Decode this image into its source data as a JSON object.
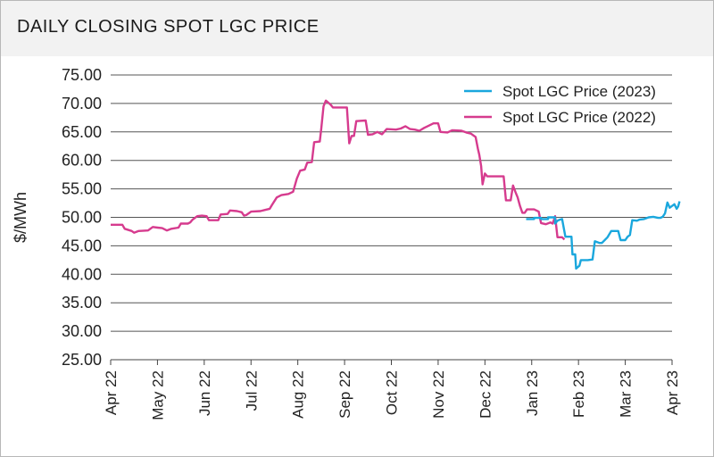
{
  "title": "DAILY CLOSING SPOT LGC PRICE",
  "chart_data": {
    "type": "line",
    "ylabel": "$/MWh",
    "ylim": [
      25,
      75
    ],
    "yticks": [
      "75.00",
      "70.00",
      "65.00",
      "60.00",
      "55.00",
      "50.00",
      "45.00",
      "40.00",
      "35.00",
      "30.00",
      "25.00"
    ],
    "xticks": [
      "Apr 22",
      "May 22",
      "Jun 22",
      "Jul 22",
      "Aug 22",
      "Sep 22",
      "Oct 22",
      "Nov 22",
      "Dec 22",
      "Jan 23",
      "Feb 23",
      "Mar 23",
      "Apr 23"
    ],
    "grid": "horizontal",
    "legend_position": "top-right",
    "series": [
      {
        "name": "Spot LGC Price (2023)",
        "color": "#1aa7dd",
        "points": [
          [
            8.88,
            49.7
          ],
          [
            9.05,
            49.7
          ],
          [
            9.05,
            49.9
          ],
          [
            9.2,
            49.9
          ],
          [
            9.2,
            49.7
          ],
          [
            9.35,
            49.7
          ],
          [
            9.35,
            50.0
          ],
          [
            9.5,
            50.0
          ],
          [
            9.5,
            48.9
          ],
          [
            9.55,
            49.4
          ],
          [
            9.6,
            49.6
          ],
          [
            9.65,
            49.7
          ],
          [
            9.7,
            47.5
          ],
          [
            9.72,
            46.6
          ],
          [
            9.85,
            46.6
          ],
          [
            9.87,
            43.5
          ],
          [
            9.93,
            43.5
          ],
          [
            9.95,
            41.0
          ],
          [
            10.02,
            41.5
          ],
          [
            10.05,
            42.5
          ],
          [
            10.2,
            42.5
          ],
          [
            10.3,
            42.6
          ],
          [
            10.35,
            45.8
          ],
          [
            10.45,
            45.5
          ],
          [
            10.5,
            45.5
          ],
          [
            10.62,
            46.5
          ],
          [
            10.7,
            47.6
          ],
          [
            10.85,
            47.6
          ],
          [
            10.9,
            46.0
          ],
          [
            11.0,
            46.0
          ],
          [
            11.05,
            46.6
          ],
          [
            11.1,
            46.9
          ],
          [
            11.15,
            49.5
          ],
          [
            11.25,
            49.4
          ],
          [
            11.3,
            49.6
          ],
          [
            11.4,
            49.7
          ],
          [
            11.5,
            50.0
          ],
          [
            11.6,
            50.1
          ],
          [
            11.7,
            49.9
          ],
          [
            11.75,
            49.9
          ],
          [
            11.8,
            50.1
          ],
          [
            11.85,
            50.7
          ],
          [
            11.9,
            52.6
          ],
          [
            11.95,
            51.7
          ],
          [
            12.05,
            52.3
          ],
          [
            12.1,
            51.5
          ],
          [
            12.13,
            51.9
          ],
          [
            12.16,
            52.8
          ]
        ]
      },
      {
        "name": "Spot LGC Price (2022)",
        "color": "#d63b8e",
        "points": [
          [
            0.0,
            48.7
          ],
          [
            0.25,
            48.7
          ],
          [
            0.3,
            48.0
          ],
          [
            0.45,
            47.6
          ],
          [
            0.5,
            47.3
          ],
          [
            0.6,
            47.6
          ],
          [
            0.8,
            47.7
          ],
          [
            0.9,
            48.3
          ],
          [
            1.0,
            48.2
          ],
          [
            1.1,
            48.1
          ],
          [
            1.2,
            47.7
          ],
          [
            1.3,
            48.0
          ],
          [
            1.45,
            48.2
          ],
          [
            1.5,
            48.9
          ],
          [
            1.65,
            48.9
          ],
          [
            1.7,
            49.1
          ],
          [
            1.75,
            49.6
          ],
          [
            1.85,
            50.2
          ],
          [
            1.95,
            50.3
          ],
          [
            2.05,
            50.2
          ],
          [
            2.1,
            49.5
          ],
          [
            2.3,
            49.5
          ],
          [
            2.35,
            50.5
          ],
          [
            2.5,
            50.6
          ],
          [
            2.55,
            51.2
          ],
          [
            2.7,
            51.1
          ],
          [
            2.8,
            50.9
          ],
          [
            2.85,
            50.3
          ],
          [
            2.9,
            50.4
          ],
          [
            3.0,
            51.0
          ],
          [
            3.2,
            51.1
          ],
          [
            3.3,
            51.3
          ],
          [
            3.4,
            51.5
          ],
          [
            3.45,
            52.2
          ],
          [
            3.55,
            53.5
          ],
          [
            3.65,
            53.9
          ],
          [
            3.8,
            54.1
          ],
          [
            3.9,
            54.5
          ],
          [
            3.98,
            56.8
          ],
          [
            4.05,
            58.2
          ],
          [
            4.15,
            58.4
          ],
          [
            4.2,
            59.6
          ],
          [
            4.3,
            59.7
          ],
          [
            4.35,
            63.2
          ],
          [
            4.47,
            63.3
          ],
          [
            4.5,
            65.5
          ],
          [
            4.55,
            69.5
          ],
          [
            4.6,
            70.5
          ],
          [
            4.7,
            69.8
          ],
          [
            4.75,
            69.3
          ],
          [
            5.05,
            69.3
          ],
          [
            5.1,
            63.0
          ],
          [
            5.15,
            64.3
          ],
          [
            5.2,
            64.3
          ],
          [
            5.25,
            66.9
          ],
          [
            5.45,
            67.0
          ],
          [
            5.5,
            64.5
          ],
          [
            5.6,
            64.6
          ],
          [
            5.7,
            65.0
          ],
          [
            5.8,
            64.6
          ],
          [
            5.9,
            65.5
          ],
          [
            6.1,
            65.4
          ],
          [
            6.2,
            65.6
          ],
          [
            6.3,
            66.0
          ],
          [
            6.4,
            65.5
          ],
          [
            6.5,
            65.4
          ],
          [
            6.6,
            65.2
          ],
          [
            6.7,
            65.7
          ],
          [
            6.8,
            66.1
          ],
          [
            6.9,
            66.5
          ],
          [
            7.0,
            66.5
          ],
          [
            7.05,
            65.0
          ],
          [
            7.2,
            64.9
          ],
          [
            7.3,
            65.3
          ],
          [
            7.5,
            65.2
          ],
          [
            7.6,
            64.9
          ],
          [
            7.7,
            64.7
          ],
          [
            7.8,
            64.1
          ],
          [
            7.85,
            62.0
          ],
          [
            7.88,
            61.0
          ],
          [
            7.92,
            59.0
          ],
          [
            7.95,
            55.8
          ],
          [
            8.0,
            57.7
          ],
          [
            8.05,
            57.2
          ],
          [
            8.4,
            57.2
          ],
          [
            8.45,
            53.0
          ],
          [
            8.55,
            53.0
          ],
          [
            8.6,
            55.6
          ],
          [
            8.65,
            54.5
          ],
          [
            8.7,
            53.5
          ],
          [
            8.75,
            52.0
          ],
          [
            8.8,
            50.8
          ],
          [
            8.85,
            50.8
          ],
          [
            8.9,
            51.4
          ],
          [
            9.05,
            51.4
          ],
          [
            9.15,
            51.0
          ],
          [
            9.2,
            49.0
          ],
          [
            9.3,
            48.8
          ],
          [
            9.4,
            49.1
          ],
          [
            9.45,
            48.9
          ],
          [
            9.5,
            50.2
          ],
          [
            9.55,
            46.5
          ],
          [
            9.65,
            46.5
          ],
          [
            9.7,
            46.1
          ]
        ]
      }
    ]
  }
}
